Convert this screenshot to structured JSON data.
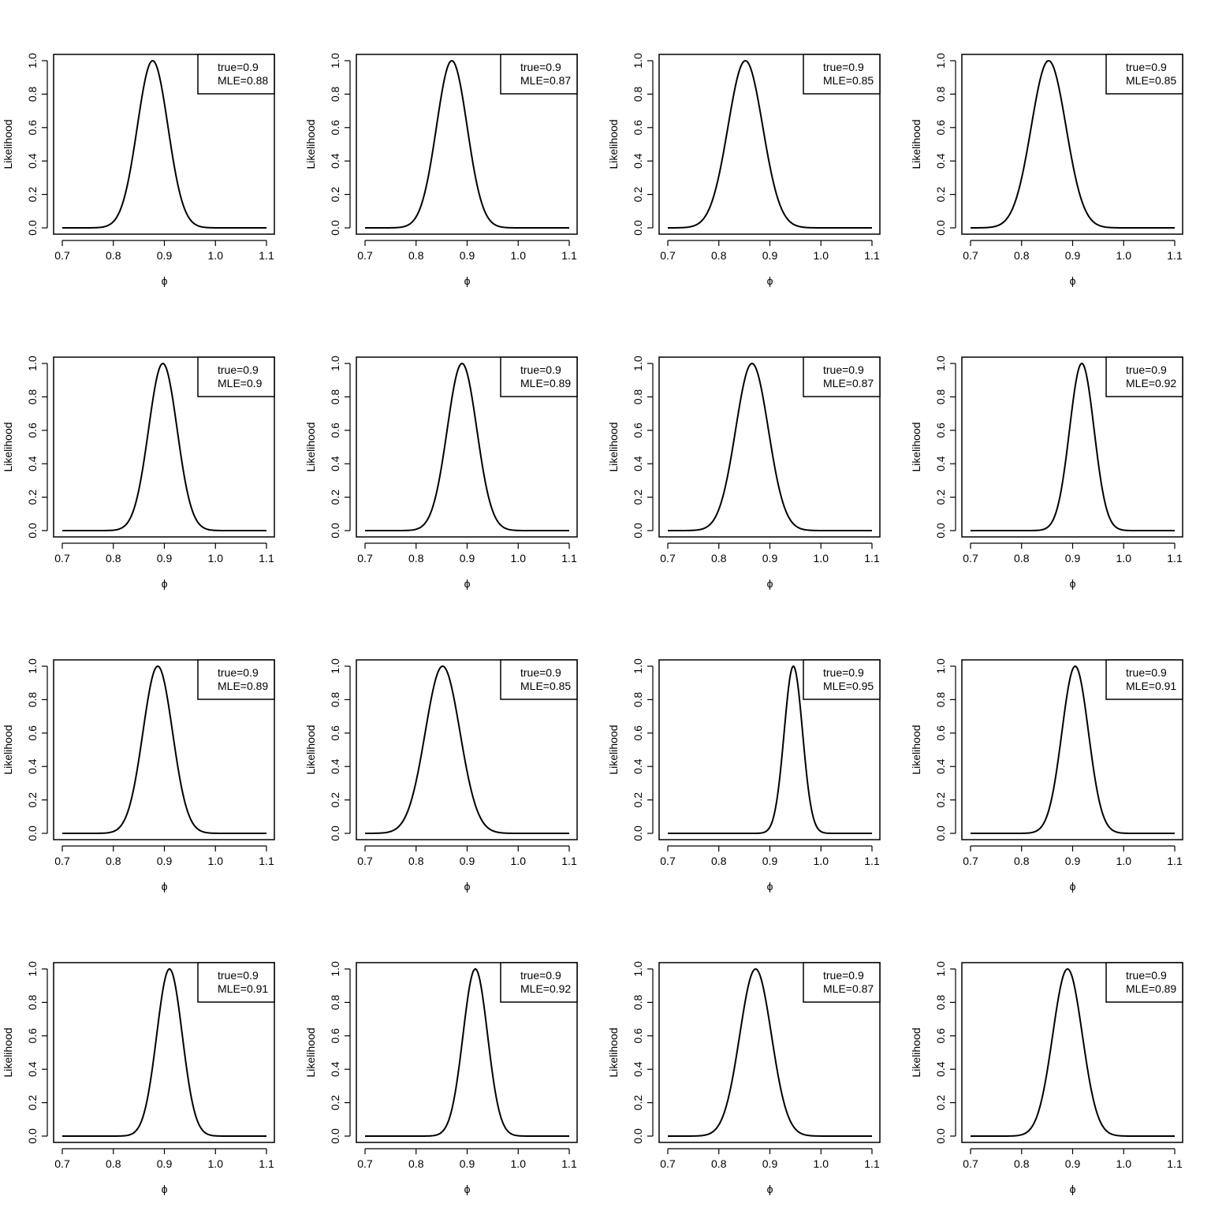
{
  "chart_data": [
    {
      "type": "line",
      "xlabel": "ϕ",
      "ylabel": "Likelihood",
      "xlim": [
        0.7,
        1.1
      ],
      "ylim": [
        0,
        1
      ],
      "x_ticks": [
        "0.7",
        "0.8",
        "0.9",
        "1.0",
        "1.1"
      ],
      "y_ticks": [
        "0.0",
        "0.2",
        "0.4",
        "0.6",
        "0.8",
        "1.0"
      ],
      "legend": {
        "position": "top-right",
        "lines": [
          "true=0.9",
          "MLE=0.88"
        ]
      },
      "series": [
        {
          "peak_x": 0.877,
          "peak_y": 1.0,
          "sd": 0.03
        }
      ]
    },
    {
      "type": "line",
      "xlabel": "ϕ",
      "ylabel": "Likelihood",
      "xlim": [
        0.7,
        1.1
      ],
      "ylim": [
        0,
        1
      ],
      "x_ticks": [
        "0.7",
        "0.8",
        "0.9",
        "1.0",
        "1.1"
      ],
      "y_ticks": [
        "0.0",
        "0.2",
        "0.4",
        "0.6",
        "0.8",
        "1.0"
      ],
      "legend": {
        "position": "top-right",
        "lines": [
          "true=0.9",
          "MLE=0.87"
        ]
      },
      "series": [
        {
          "peak_x": 0.87,
          "peak_y": 1.0,
          "sd": 0.03
        }
      ]
    },
    {
      "type": "line",
      "xlabel": "ϕ",
      "ylabel": "Likelihood",
      "xlim": [
        0.7,
        1.1
      ],
      "ylim": [
        0,
        1
      ],
      "x_ticks": [
        "0.7",
        "0.8",
        "0.9",
        "1.0",
        "1.1"
      ],
      "y_ticks": [
        "0.0",
        "0.2",
        "0.4",
        "0.6",
        "0.8",
        "1.0"
      ],
      "legend": {
        "position": "top-right",
        "lines": [
          "true=0.9",
          "MLE=0.85"
        ]
      },
      "series": [
        {
          "peak_x": 0.852,
          "peak_y": 1.0,
          "sd": 0.034
        }
      ]
    },
    {
      "type": "line",
      "xlabel": "ϕ",
      "ylabel": "Likelihood",
      "xlim": [
        0.7,
        1.1
      ],
      "ylim": [
        0,
        1
      ],
      "x_ticks": [
        "0.7",
        "0.8",
        "0.9",
        "1.0",
        "1.1"
      ],
      "y_ticks": [
        "0.0",
        "0.2",
        "0.4",
        "0.6",
        "0.8",
        "1.0"
      ],
      "legend": {
        "position": "top-right",
        "lines": [
          "true=0.9",
          "MLE=0.85"
        ]
      },
      "series": [
        {
          "peak_x": 0.853,
          "peak_y": 1.0,
          "sd": 0.034
        }
      ]
    },
    {
      "type": "line",
      "xlabel": "ϕ",
      "ylabel": "Likelihood",
      "xlim": [
        0.7,
        1.1
      ],
      "ylim": [
        0,
        1
      ],
      "x_ticks": [
        "0.7",
        "0.8",
        "0.9",
        "1.0",
        "1.1"
      ],
      "y_ticks": [
        "0.0",
        "0.2",
        "0.4",
        "0.6",
        "0.8",
        "1.0"
      ],
      "legend": {
        "position": "top-right",
        "lines": [
          "true=0.9",
          "MLE=0.9"
        ]
      },
      "series": [
        {
          "peak_x": 0.897,
          "peak_y": 1.0,
          "sd": 0.028
        }
      ]
    },
    {
      "type": "line",
      "xlabel": "ϕ",
      "ylabel": "Likelihood",
      "xlim": [
        0.7,
        1.1
      ],
      "ylim": [
        0,
        1
      ],
      "x_ticks": [
        "0.7",
        "0.8",
        "0.9",
        "1.0",
        "1.1"
      ],
      "y_ticks": [
        "0.0",
        "0.2",
        "0.4",
        "0.6",
        "0.8",
        "1.0"
      ],
      "legend": {
        "position": "top-right",
        "lines": [
          "true=0.9",
          "MLE=0.89"
        ]
      },
      "series": [
        {
          "peak_x": 0.89,
          "peak_y": 1.0,
          "sd": 0.029
        }
      ]
    },
    {
      "type": "line",
      "xlabel": "ϕ",
      "ylabel": "Likelihood",
      "xlim": [
        0.7,
        1.1
      ],
      "ylim": [
        0,
        1
      ],
      "x_ticks": [
        "0.7",
        "0.8",
        "0.9",
        "1.0",
        "1.1"
      ],
      "y_ticks": [
        "0.0",
        "0.2",
        "0.4",
        "0.6",
        "0.8",
        "1.0"
      ],
      "legend": {
        "position": "top-right",
        "lines": [
          "true=0.9",
          "MLE=0.87"
        ]
      },
      "series": [
        {
          "peak_x": 0.865,
          "peak_y": 1.0,
          "sd": 0.032
        }
      ]
    },
    {
      "type": "line",
      "xlabel": "ϕ",
      "ylabel": "Likelihood",
      "xlim": [
        0.7,
        1.1
      ],
      "ylim": [
        0,
        1
      ],
      "x_ticks": [
        "0.7",
        "0.8",
        "0.9",
        "1.0",
        "1.1"
      ],
      "y_ticks": [
        "0.0",
        "0.2",
        "0.4",
        "0.6",
        "0.8",
        "1.0"
      ],
      "legend": {
        "position": "top-right",
        "lines": [
          "true=0.9",
          "MLE=0.92"
        ]
      },
      "series": [
        {
          "peak_x": 0.918,
          "peak_y": 1.0,
          "sd": 0.024
        }
      ]
    },
    {
      "type": "line",
      "xlabel": "ϕ",
      "ylabel": "Likelihood",
      "xlim": [
        0.7,
        1.1
      ],
      "ylim": [
        0,
        1
      ],
      "x_ticks": [
        "0.7",
        "0.8",
        "0.9",
        "1.0",
        "1.1"
      ],
      "y_ticks": [
        "0.0",
        "0.2",
        "0.4",
        "0.6",
        "0.8",
        "1.0"
      ],
      "legend": {
        "position": "top-right",
        "lines": [
          "true=0.9",
          "MLE=0.89"
        ]
      },
      "series": [
        {
          "peak_x": 0.887,
          "peak_y": 1.0,
          "sd": 0.029
        }
      ]
    },
    {
      "type": "line",
      "xlabel": "ϕ",
      "ylabel": "Likelihood",
      "xlim": [
        0.7,
        1.1
      ],
      "ylim": [
        0,
        1
      ],
      "x_ticks": [
        "0.7",
        "0.8",
        "0.9",
        "1.0",
        "1.1"
      ],
      "y_ticks": [
        "0.0",
        "0.2",
        "0.4",
        "0.6",
        "0.8",
        "1.0"
      ],
      "legend": {
        "position": "top-right",
        "lines": [
          "true=0.9",
          "MLE=0.85"
        ]
      },
      "series": [
        {
          "peak_x": 0.852,
          "peak_y": 1.0,
          "sd": 0.034
        }
      ]
    },
    {
      "type": "line",
      "xlabel": "ϕ",
      "ylabel": "Likelihood",
      "xlim": [
        0.7,
        1.1
      ],
      "ylim": [
        0,
        1
      ],
      "x_ticks": [
        "0.7",
        "0.8",
        "0.9",
        "1.0",
        "1.1"
      ],
      "y_ticks": [
        "0.0",
        "0.2",
        "0.4",
        "0.6",
        "0.8",
        "1.0"
      ],
      "legend": {
        "position": "top-right",
        "lines": [
          "true=0.9",
          "MLE=0.95"
        ]
      },
      "series": [
        {
          "peak_x": 0.946,
          "peak_y": 1.0,
          "sd": 0.018
        }
      ]
    },
    {
      "type": "line",
      "xlabel": "ϕ",
      "ylabel": "Likelihood",
      "xlim": [
        0.7,
        1.1
      ],
      "ylim": [
        0,
        1
      ],
      "x_ticks": [
        "0.7",
        "0.8",
        "0.9",
        "1.0",
        "1.1"
      ],
      "y_ticks": [
        "0.0",
        "0.2",
        "0.4",
        "0.6",
        "0.8",
        "1.0"
      ],
      "legend": {
        "position": "top-right",
        "lines": [
          "true=0.9",
          "MLE=0.91"
        ]
      },
      "series": [
        {
          "peak_x": 0.905,
          "peak_y": 1.0,
          "sd": 0.026
        }
      ]
    },
    {
      "type": "line",
      "xlabel": "ϕ",
      "ylabel": "Likelihood",
      "xlim": [
        0.7,
        1.1
      ],
      "ylim": [
        0,
        1
      ],
      "x_ticks": [
        "0.7",
        "0.8",
        "0.9",
        "1.0",
        "1.1"
      ],
      "y_ticks": [
        "0.0",
        "0.2",
        "0.4",
        "0.6",
        "0.8",
        "1.0"
      ],
      "legend": {
        "position": "top-right",
        "lines": [
          "true=0.9",
          "MLE=0.91"
        ]
      },
      "series": [
        {
          "peak_x": 0.91,
          "peak_y": 1.0,
          "sd": 0.025
        }
      ]
    },
    {
      "type": "line",
      "xlabel": "ϕ",
      "ylabel": "Likelihood",
      "xlim": [
        0.7,
        1.1
      ],
      "ylim": [
        0,
        1
      ],
      "x_ticks": [
        "0.7",
        "0.8",
        "0.9",
        "1.0",
        "1.1"
      ],
      "y_ticks": [
        "0.0",
        "0.2",
        "0.4",
        "0.6",
        "0.8",
        "1.0"
      ],
      "legend": {
        "position": "top-right",
        "lines": [
          "true=0.9",
          "MLE=0.92"
        ]
      },
      "series": [
        {
          "peak_x": 0.916,
          "peak_y": 1.0,
          "sd": 0.024
        }
      ]
    },
    {
      "type": "line",
      "xlabel": "ϕ",
      "ylabel": "Likelihood",
      "xlim": [
        0.7,
        1.1
      ],
      "ylim": [
        0,
        1
      ],
      "x_ticks": [
        "0.7",
        "0.8",
        "0.9",
        "1.0",
        "1.1"
      ],
      "y_ticks": [
        "0.0",
        "0.2",
        "0.4",
        "0.6",
        "0.8",
        "1.0"
      ],
      "legend": {
        "position": "top-right",
        "lines": [
          "true=0.9",
          "MLE=0.87"
        ]
      },
      "series": [
        {
          "peak_x": 0.872,
          "peak_y": 1.0,
          "sd": 0.031
        }
      ]
    },
    {
      "type": "line",
      "xlabel": "ϕ",
      "ylabel": "Likelihood",
      "xlim": [
        0.7,
        1.1
      ],
      "ylim": [
        0,
        1
      ],
      "x_ticks": [
        "0.7",
        "0.8",
        "0.9",
        "1.0",
        "1.1"
      ],
      "y_ticks": [
        "0.0",
        "0.2",
        "0.4",
        "0.6",
        "0.8",
        "1.0"
      ],
      "legend": {
        "position": "top-right",
        "lines": [
          "true=0.9",
          "MLE=0.89"
        ]
      },
      "series": [
        {
          "peak_x": 0.89,
          "peak_y": 1.0,
          "sd": 0.029
        }
      ]
    }
  ]
}
